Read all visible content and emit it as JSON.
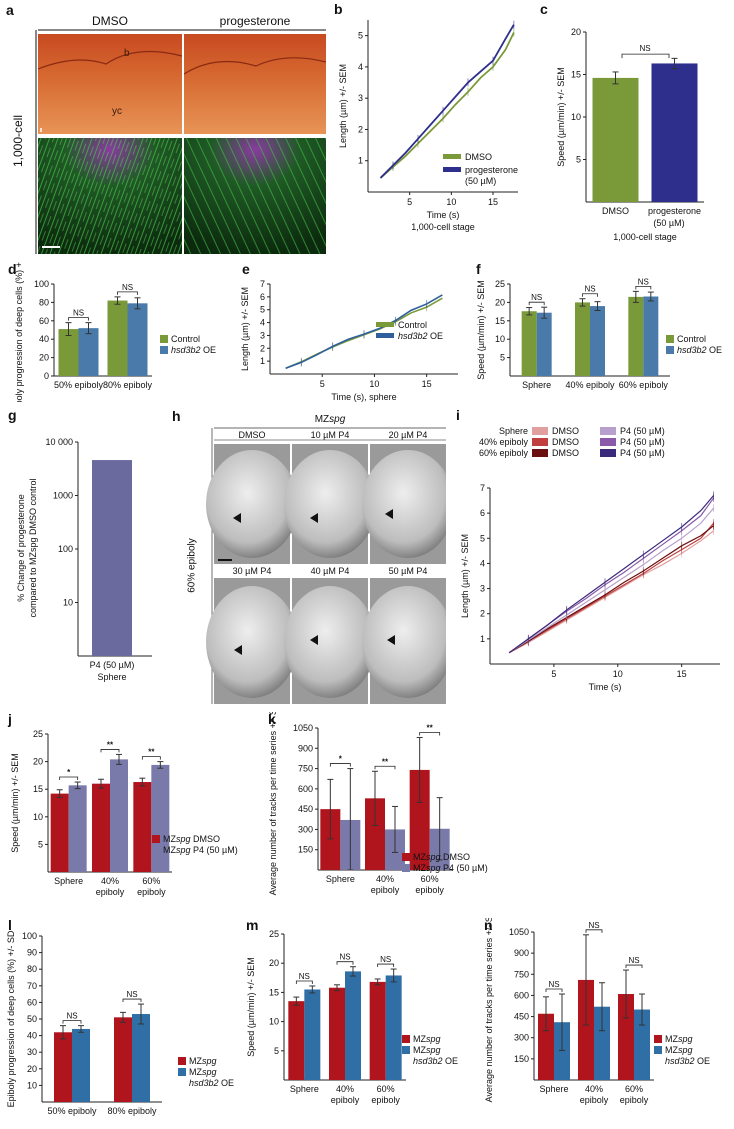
{
  "panels": {
    "a": {
      "letter": "a",
      "col_headers": [
        "DMSO",
        "progesterone"
      ],
      "row_label": "1,000-cell",
      "annotations": {
        "b": "b",
        "yc": "yc"
      }
    },
    "h": {
      "letter": "h",
      "title": "MZspg",
      "title_plain": "MZ",
      "title_italic": "spg",
      "row_label": "60% epiboly",
      "top_labels": [
        "DMSO",
        "10 µM P4",
        "20 µM P4"
      ],
      "bottom_labels": [
        "30 µM P4",
        "40 µM P4",
        "50 µM P4"
      ]
    }
  },
  "chart_data": [
    {
      "id": "b",
      "type": "line",
      "xlabel": "Time (s)",
      "xlabel2": "1,000-cell stage",
      "ylabel": "Length (µm) +/- SEM",
      "xlim": [
        0,
        18
      ],
      "ylim": [
        0,
        5.5
      ],
      "xticks": [
        5,
        10,
        15
      ],
      "yticks": [
        1,
        2,
        3,
        4,
        5
      ],
      "x": [
        1.5,
        3,
        4.5,
        6,
        7.5,
        9,
        10.5,
        12,
        13.5,
        15,
        16.5,
        17.5
      ],
      "series": [
        {
          "name": "DMSO",
          "color": "#7a9a3a",
          "values": [
            0.45,
            0.8,
            1.15,
            1.55,
            1.95,
            2.35,
            2.8,
            3.2,
            3.65,
            4.0,
            4.55,
            5.1
          ]
        },
        {
          "name": "progesterone (50 µM)",
          "color": "#2e2e8c",
          "values": [
            0.45,
            0.85,
            1.25,
            1.7,
            2.15,
            2.6,
            3.05,
            3.5,
            3.85,
            4.2,
            4.9,
            5.35
          ]
        }
      ],
      "legend": [
        "DMSO",
        "progesterone",
        "(50 µM)"
      ]
    },
    {
      "id": "c",
      "type": "bar",
      "categories": [
        "DMSO",
        "progesterone"
      ],
      "cat_sub": "(50 µM)",
      "xlabel": "1,000-cell stage",
      "ylabel": "Speed (µm/min) +/- SEM",
      "ylim": [
        0,
        20
      ],
      "yticks": [
        5,
        10,
        15,
        20
      ],
      "values": [
        14.6,
        16.3
      ],
      "errors": [
        0.7,
        0.6
      ],
      "colors": [
        "#7a9a3a",
        "#2e2e8c"
      ],
      "sig": [
        {
          "label": "NS"
        }
      ]
    },
    {
      "id": "d",
      "type": "bar",
      "categories": [
        "50% epiboly",
        "80% epiboly"
      ],
      "ylabel": "Epiboly progression of deep cells (%) +/- SD",
      "ylim": [
        0,
        100
      ],
      "yticks": [
        0,
        20,
        40,
        60,
        80,
        100
      ],
      "series": [
        {
          "name": "Control",
          "color": "#7a9a3a",
          "values": [
            51,
            82
          ],
          "errors": [
            7,
            4
          ]
        },
        {
          "name": "hsd3b2 OE",
          "color": "#4a7aaa",
          "values": [
            52,
            79
          ],
          "errors": [
            6,
            6
          ]
        }
      ],
      "sig": [
        "NS",
        "NS"
      ]
    },
    {
      "id": "e",
      "type": "line",
      "xlabel": "Time (s), sphere",
      "ylabel": "Length (µm) +/- SEM",
      "xlim": [
        0,
        18
      ],
      "ylim": [
        0,
        7
      ],
      "xticks": [
        5,
        10,
        15
      ],
      "yticks": [
        1,
        2,
        3,
        4,
        5,
        6,
        7
      ],
      "x": [
        1.5,
        3,
        4.5,
        6,
        7.5,
        9,
        10.5,
        12,
        13.5,
        15,
        16.5
      ],
      "series": [
        {
          "name": "Control",
          "color": "#7a9a3a",
          "values": [
            0.45,
            0.95,
            1.55,
            2.1,
            2.6,
            3.05,
            3.5,
            4.05,
            4.75,
            5.2,
            5.9
          ]
        },
        {
          "name": "hsd3b2 OE",
          "color": "#2f5f9c",
          "values": [
            0.45,
            0.9,
            1.5,
            2.15,
            2.7,
            3.1,
            3.55,
            4.15,
            4.95,
            5.45,
            6.15
          ]
        }
      ]
    },
    {
      "id": "f",
      "type": "bar",
      "categories": [
        "Sphere",
        "40% epiboly",
        "60% epiboly"
      ],
      "ylabel": "Speed (µm/min) +/- SEM",
      "ylim": [
        0,
        25
      ],
      "yticks": [
        5,
        10,
        15,
        20,
        25
      ],
      "series": [
        {
          "name": "Control",
          "color": "#7a9a3a",
          "values": [
            17.6,
            20.0,
            21.5
          ],
          "errors": [
            1.0,
            1.0,
            1.5
          ]
        },
        {
          "name": "hsd3b2 OE",
          "color": "#4a7aaa",
          "values": [
            17.2,
            19.0,
            21.6
          ],
          "errors": [
            1.5,
            1.2,
            1.2
          ]
        }
      ],
      "sig": [
        "NS",
        "NS",
        "NS"
      ]
    },
    {
      "id": "g",
      "type": "bar",
      "scale": "log",
      "categories": [
        "P4 (50 µM)"
      ],
      "xlabel": "Sphere",
      "ylabel": "% Change of progesterone compared to MZspg DMSO control",
      "ylim": [
        1,
        10000
      ],
      "yticks": [
        "10",
        "100",
        "1000",
        "10 000"
      ],
      "values": [
        4600
      ],
      "colors": [
        "#6a6a9e"
      ]
    },
    {
      "id": "i",
      "type": "line",
      "xlabel": "Time (s)",
      "ylabel": "Length (µm) +/- SEM",
      "xlim": [
        0,
        18
      ],
      "ylim": [
        0,
        7
      ],
      "xticks": [
        5,
        10,
        15
      ],
      "yticks": [
        1,
        2,
        3,
        4,
        5,
        6,
        7
      ],
      "x": [
        1.5,
        3,
        4.5,
        6,
        7.5,
        9,
        10.5,
        12,
        13.5,
        15,
        16.5,
        17.5
      ],
      "series": [
        {
          "name": "Sphere DMSO",
          "color": "#e0a0a0",
          "values": [
            0.45,
            0.85,
            1.3,
            1.75,
            2.2,
            2.65,
            3.1,
            3.55,
            3.95,
            4.4,
            4.9,
            5.3
          ]
        },
        {
          "name": "40% epiboly DMSO",
          "color": "#c04040",
          "values": [
            0.45,
            0.9,
            1.35,
            1.8,
            2.25,
            2.7,
            3.15,
            3.6,
            4.1,
            4.55,
            5.0,
            5.6
          ]
        },
        {
          "name": "60% epiboly DMSO",
          "color": "#6a1010",
          "values": [
            0.45,
            0.9,
            1.4,
            1.85,
            2.3,
            2.75,
            3.25,
            3.7,
            4.2,
            4.7,
            5.1,
            5.5
          ]
        },
        {
          "name": "Sphere P4 (50 µM)",
          "color": "#b8a0cc",
          "values": [
            0.45,
            0.95,
            1.45,
            1.95,
            2.45,
            2.95,
            3.45,
            3.95,
            4.5,
            5.0,
            5.6,
            6.2
          ]
        },
        {
          "name": "40% epiboly P4 (50 µM)",
          "color": "#8a5aa8",
          "values": [
            0.45,
            1.0,
            1.55,
            2.1,
            2.6,
            3.15,
            3.65,
            4.2,
            4.75,
            5.3,
            5.9,
            6.6
          ]
        },
        {
          "name": "60% epiboly P4 (50 µM)",
          "color": "#3a2a7a",
          "values": [
            0.45,
            1.0,
            1.55,
            2.15,
            2.7,
            3.25,
            3.8,
            4.35,
            4.9,
            5.45,
            6.1,
            6.7
          ]
        }
      ],
      "legend": {
        "rows": [
          "Sphere",
          "40% epiboly",
          "60% epiboly"
        ],
        "dmso": "DMSO",
        "p4": "P4 (50 µM)"
      }
    },
    {
      "id": "j",
      "type": "bar",
      "categories": [
        "Sphere",
        "40% epiboly",
        "60% epiboly"
      ],
      "ylabel": "Speed (µm/min) +/- SEM",
      "ylim": [
        0,
        25
      ],
      "yticks": [
        5,
        10,
        15,
        20,
        25
      ],
      "series": [
        {
          "name": "MZspg DMSO",
          "color": "#b0141c",
          "values": [
            14.2,
            16.0,
            16.3
          ],
          "errors": [
            0.7,
            0.8,
            0.7
          ]
        },
        {
          "name": "MZspg P4 (50 µM)",
          "color": "#7a7aaa",
          "values": [
            15.7,
            20.4,
            19.4
          ],
          "errors": [
            0.6,
            0.9,
            0.6
          ]
        }
      ],
      "sig": [
        "*",
        "**",
        "**"
      ]
    },
    {
      "id": "k",
      "type": "bar",
      "categories": [
        "Sphere",
        "40% epiboly",
        "60% epiboly"
      ],
      "ylabel": "Average number of tracks per time series +/- SD",
      "ylim": [
        0,
        1050
      ],
      "yticks": [
        150,
        300,
        450,
        600,
        750,
        900,
        1050
      ],
      "series": [
        {
          "name": "MZspg DMSO",
          "color": "#b0141c",
          "values": [
            450,
            530,
            740
          ],
          "errors": [
            220,
            200,
            240
          ]
        },
        {
          "name": "MZspg P4 (50 µM)",
          "color": "#7a7aaa",
          "values": [
            370,
            300,
            305
          ],
          "errors": [
            380,
            170,
            230
          ]
        }
      ],
      "sig": [
        "*",
        "**",
        "**"
      ]
    },
    {
      "id": "l",
      "type": "bar",
      "categories": [
        "50% epiboly",
        "80% epiboly"
      ],
      "ylabel": "Epiboly progression of deep cells (%) +/- SD",
      "ylim": [
        0,
        100
      ],
      "yticks": [
        10,
        20,
        30,
        40,
        50,
        60,
        70,
        80,
        90,
        100
      ],
      "series": [
        {
          "name": "MZspg",
          "color": "#b0141c",
          "values": [
            42,
            51
          ],
          "errors": [
            4,
            3
          ]
        },
        {
          "name": "MZspg hsd3b2 OE",
          "color": "#2f6fa6",
          "values": [
            44,
            53
          ],
          "errors": [
            2,
            6
          ]
        }
      ],
      "sig": [
        "NS",
        "NS"
      ]
    },
    {
      "id": "m",
      "type": "bar",
      "categories": [
        "Sphere",
        "40% epiboly",
        "60% epiboly"
      ],
      "ylabel": "Speed (µm/min) +/- SEM",
      "ylim": [
        0,
        25
      ],
      "yticks": [
        5,
        10,
        15,
        20,
        25
      ],
      "series": [
        {
          "name": "MZspg",
          "color": "#b0141c",
          "values": [
            13.5,
            15.8,
            16.8
          ],
          "errors": [
            0.7,
            0.5,
            0.5
          ]
        },
        {
          "name": "MZspg hsd3b2 OE",
          "color": "#2f6fa6",
          "values": [
            15.5,
            18.6,
            17.9
          ],
          "errors": [
            0.6,
            0.8,
            1.1
          ]
        }
      ],
      "sig": [
        "NS",
        "NS",
        "NS"
      ]
    },
    {
      "id": "n",
      "type": "bar",
      "categories": [
        "Sphere",
        "40% epiboly",
        "60% epiboly"
      ],
      "ylabel": "Average number of tracks per time series +/- SD",
      "ylim": [
        0,
        1050
      ],
      "yticks": [
        150,
        300,
        450,
        600,
        750,
        900,
        1050
      ],
      "series": [
        {
          "name": "MZspg",
          "color": "#b0141c",
          "values": [
            470,
            710,
            610
          ],
          "errors": [
            120,
            320,
            170
          ]
        },
        {
          "name": "MZspg hsd3b2 OE",
          "color": "#2f6fa6",
          "values": [
            410,
            520,
            500
          ],
          "errors": [
            200,
            170,
            110
          ]
        }
      ],
      "sig": [
        "NS",
        "NS",
        "NS"
      ]
    }
  ]
}
